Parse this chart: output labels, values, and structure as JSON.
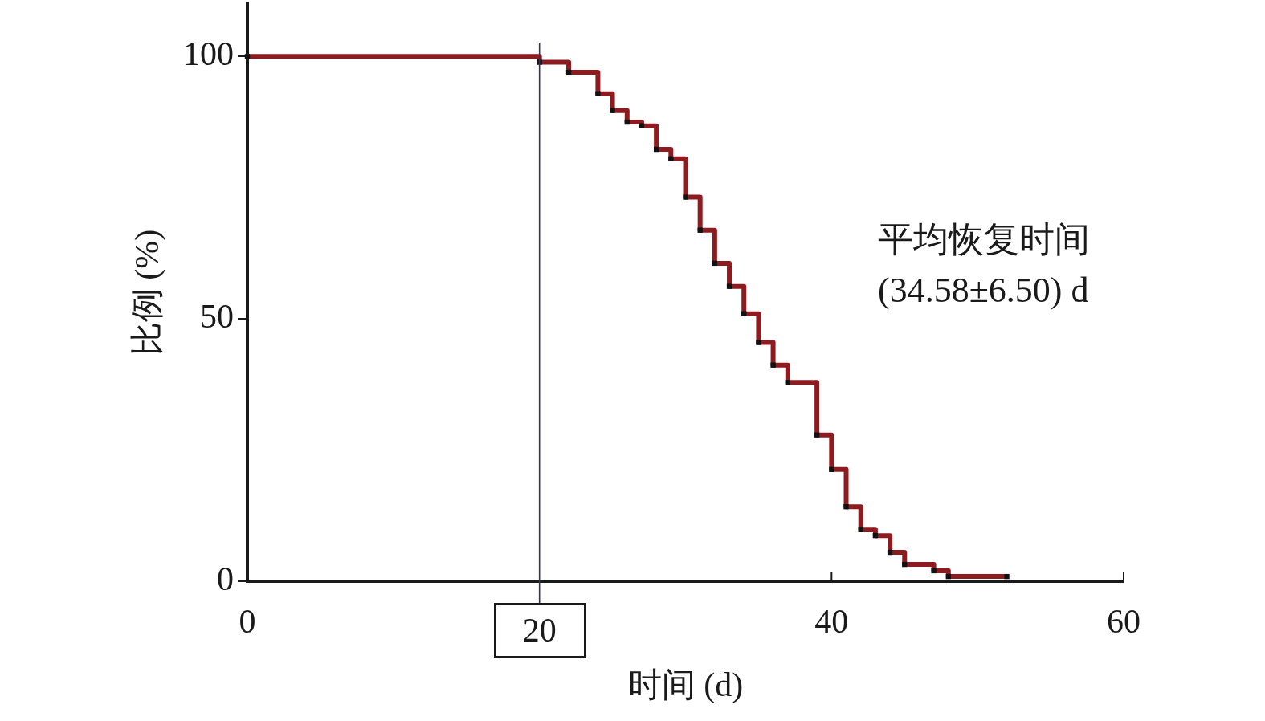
{
  "chart_data": {
    "type": "step",
    "xlabel": "时间 (d)",
    "ylabel": "比例 (%)",
    "annotations": [
      "平均恢复时间",
      "(34.58±6.50) d"
    ],
    "x": [
      0,
      20,
      22,
      24,
      25,
      26,
      27,
      28,
      29,
      30,
      31,
      32,
      33,
      34,
      35,
      36,
      37,
      39,
      40,
      41,
      42,
      43,
      44,
      45,
      47,
      48,
      52
    ],
    "series": [
      {
        "color": "#8e1b1f",
        "values": [
          100,
          98.9,
          97,
          92.9,
          89.7,
          87.5,
          86.8,
          82.3,
          80.5,
          73.2,
          66.9,
          60.6,
          56.2,
          51,
          45.5,
          41.2,
          37.9,
          27.9,
          21.3,
          14.2,
          9.9,
          8.7,
          5.5,
          3.2,
          2,
          0.9,
          0.9
        ]
      }
    ],
    "xlim": [
      0,
      60
    ],
    "xticks": [
      0,
      40,
      60
    ],
    "ylim": [
      0,
      110
    ],
    "yticks": [
      0,
      50,
      100
    ],
    "ref_lines": [
      {
        "axis": "x",
        "value": 20,
        "label": "20",
        "color": "#33335e"
      }
    ],
    "marker": "square"
  }
}
